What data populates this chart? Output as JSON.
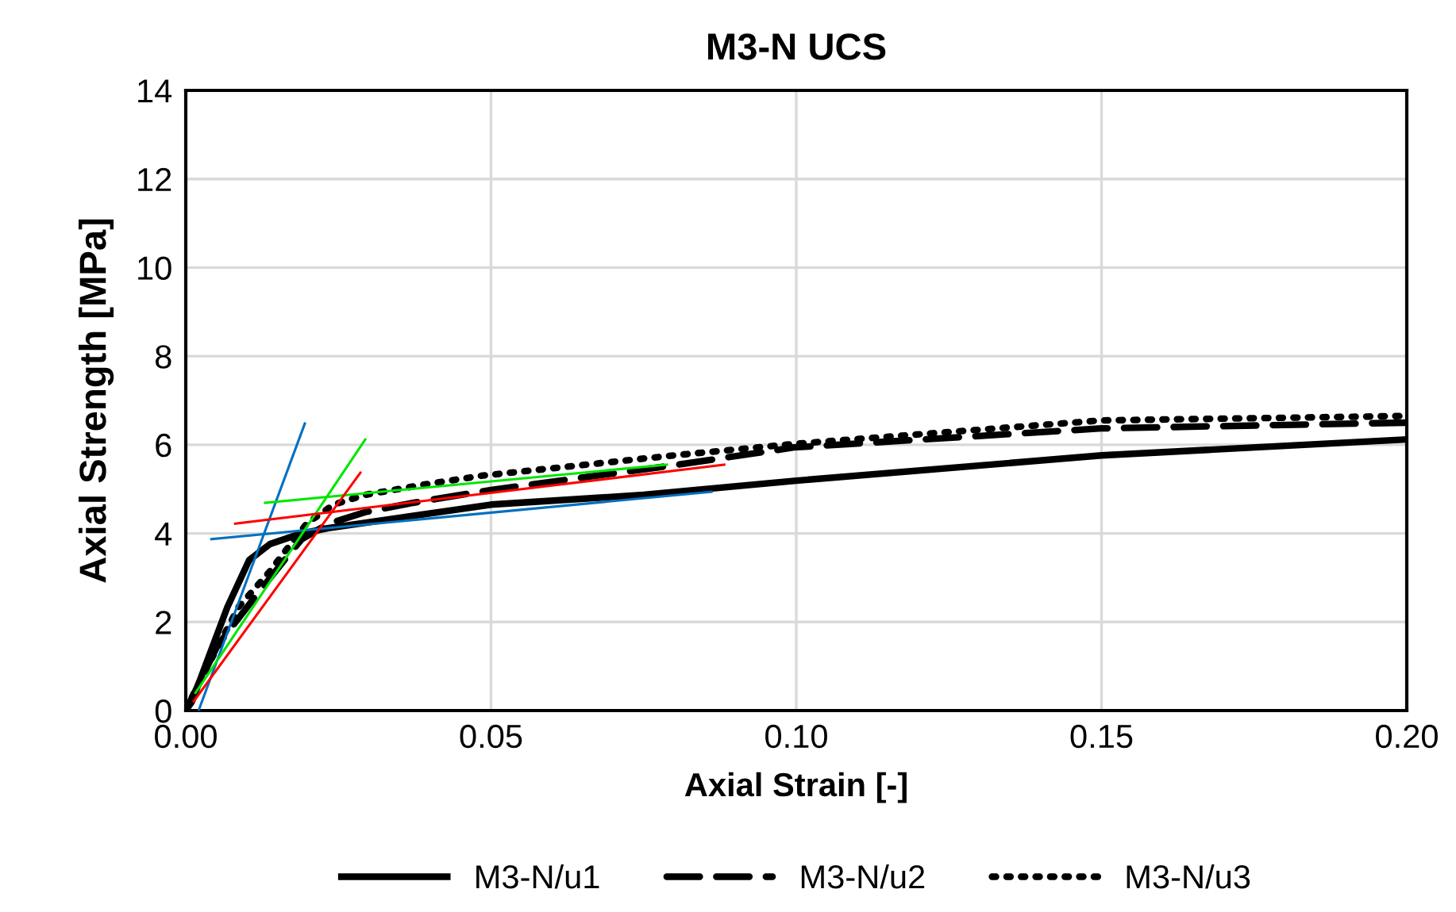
{
  "chart_data": {
    "type": "line",
    "title": "M3-N UCS",
    "xlabel": "Axial Strain [-]",
    "ylabel": "Axial Strength [MPa]",
    "xlim": [
      0,
      0.2
    ],
    "xticks": [
      {
        "value": 0,
        "label": "0.00"
      },
      {
        "value": 0.05,
        "label": "0.05"
      },
      {
        "value": 0.1,
        "label": "0.10"
      },
      {
        "value": 0.15,
        "label": "0.15"
      },
      {
        "value": 0.2,
        "label": "0.20"
      }
    ],
    "ylim": [
      0,
      14
    ],
    "yticks": [
      0,
      2,
      4,
      6,
      8,
      10,
      12,
      14
    ],
    "grid": true,
    "legend": "bottom",
    "marker": "none",
    "series": [
      {
        "name": "M3-N/u1",
        "color": "#000000",
        "line_style": "solid",
        "x": [
          0,
          0.001,
          0.0068,
          0.0104,
          0.0138,
          0.019,
          0.0234,
          0.05,
          0.075,
          0.1,
          0.15,
          0.2
        ],
        "values": [
          0,
          0.2,
          2.33,
          3.4,
          3.76,
          4.0,
          4.12,
          4.65,
          4.87,
          5.19,
          5.76,
          6.12
        ]
      },
      {
        "name": "M3-N/u2",
        "color": "#000000",
        "line_style": "dashed",
        "x": [
          0,
          0.0052,
          0.0112,
          0.0164,
          0.019,
          0.0234,
          0.0294,
          0.0372,
          0.05,
          0.0806,
          0.0996,
          0.15,
          0.2
        ],
        "values": [
          0,
          1.47,
          2.54,
          3.44,
          3.87,
          4.22,
          4.48,
          4.69,
          4.98,
          5.55,
          5.94,
          6.37,
          6.5
        ]
      },
      {
        "name": "M3-N/u3",
        "color": "#000000",
        "line_style": "dotted",
        "x": [
          0,
          0.0016,
          0.0086,
          0.0138,
          0.0164,
          0.0198,
          0.0242,
          0.0294,
          0.0398,
          0.0484,
          0.0806,
          0.0996,
          0.15,
          0.2
        ],
        "values": [
          0,
          0.47,
          2.33,
          3.15,
          3.62,
          4.22,
          4.65,
          4.87,
          5.12,
          5.3,
          5.77,
          6.02,
          6.55,
          6.65
        ]
      },
      {
        "color": "#0070c0",
        "line_style": "solid",
        "x": [
          0.0021,
          0.0195
        ],
        "values": [
          0,
          6.48
        ]
      },
      {
        "color": "#0070c0",
        "line_style": "solid",
        "x": [
          0.0042,
          0.0861
        ],
        "values": [
          3.87,
          4.94
        ]
      },
      {
        "color": "#00e600",
        "line_style": "solid",
        "x": [
          0.0016,
          0.0294
        ],
        "values": [
          0.4,
          6.12
        ]
      },
      {
        "color": "#00e600",
        "line_style": "solid",
        "x": [
          0.013,
          0.0788
        ],
        "values": [
          4.69,
          5.55
        ]
      },
      {
        "color": "#ff0000",
        "line_style": "solid",
        "x": [
          0.0013,
          0.0286
        ],
        "values": [
          0.21,
          5.37
        ]
      },
      {
        "color": "#ff0000",
        "line_style": "solid",
        "x": [
          0.0081,
          0.0882
        ],
        "values": [
          4.22,
          5.55
        ]
      }
    ]
  }
}
